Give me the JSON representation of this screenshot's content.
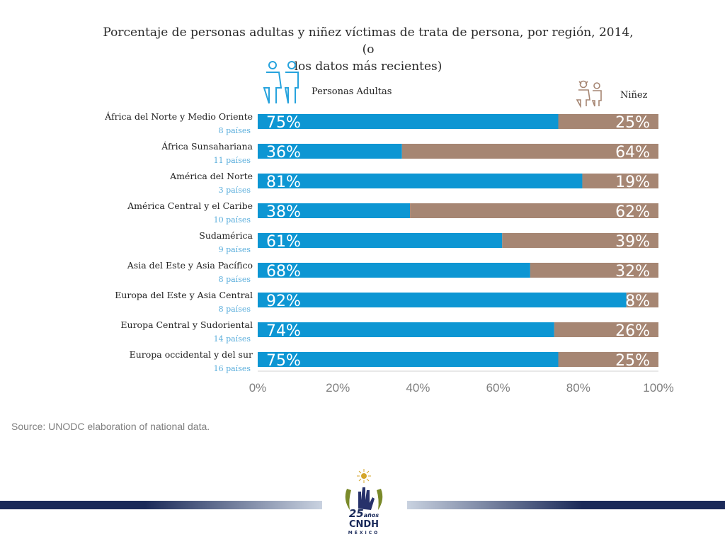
{
  "chart_data": {
    "type": "bar",
    "orientation": "horizontal",
    "stacked": true,
    "percent": true,
    "title": "Porcentaje de personas adultas y niñez víctimas de trata de persona, por región, 2014, (o los datos más recientes)",
    "title_lines": [
      "Porcentaje de personas adultas y niñez víctimas de trata de persona, por región, 2014, (o",
      "los datos más recientes)"
    ],
    "categories": [
      "África del Norte y Medio Oriente",
      "África Sunsahariana",
      "América del Norte",
      "América Central y el Caribe",
      "Sudamérica",
      "Asia del Este y Asia Pacífico",
      "Europa del Este y Asia Central",
      "Europa Central y Sudoriental",
      "Europa occidental y del sur"
    ],
    "subcategories": [
      "8 países",
      "11 países",
      "3 países",
      "10 países",
      "9 países",
      "8 países",
      "8 países",
      "14 países",
      "16 países"
    ],
    "series": [
      {
        "name": "Personas Adultas",
        "color": "#0d96d3",
        "values": [
          75,
          36,
          81,
          38,
          61,
          68,
          92,
          74,
          75
        ]
      },
      {
        "name": "Niñez",
        "color": "#a68673",
        "values": [
          25,
          64,
          19,
          62,
          39,
          32,
          8,
          26,
          25
        ]
      }
    ],
    "data_labels": [
      [
        "75%",
        "36%",
        "81%",
        "38%",
        "61%",
        "68%",
        "92%",
        "74%",
        "75%"
      ],
      [
        "25%",
        "64%",
        "19%",
        "62%",
        "39%",
        "32%",
        "8%",
        "26%",
        "25%"
      ]
    ],
    "xlim": [
      0,
      100
    ],
    "xticks": [
      0,
      20,
      40,
      60,
      80,
      100
    ],
    "xtick_labels": [
      "0%",
      "20%",
      "40%",
      "60%",
      "80%",
      "100%"
    ],
    "grid": false,
    "legend_position": "top"
  },
  "legend": {
    "adults_label": "Personas Adultas",
    "adults_icon": "adult-couple-icon",
    "children_label": "Niñez",
    "children_icon": "children-icon"
  },
  "source": "Source: UNODC elaboration of national data.",
  "footer": {
    "logo_years": "25",
    "logo_years_suffix": "años",
    "logo_name": "CNDH",
    "logo_country": "MÉXICO",
    "band_color": "#1b2a59"
  }
}
